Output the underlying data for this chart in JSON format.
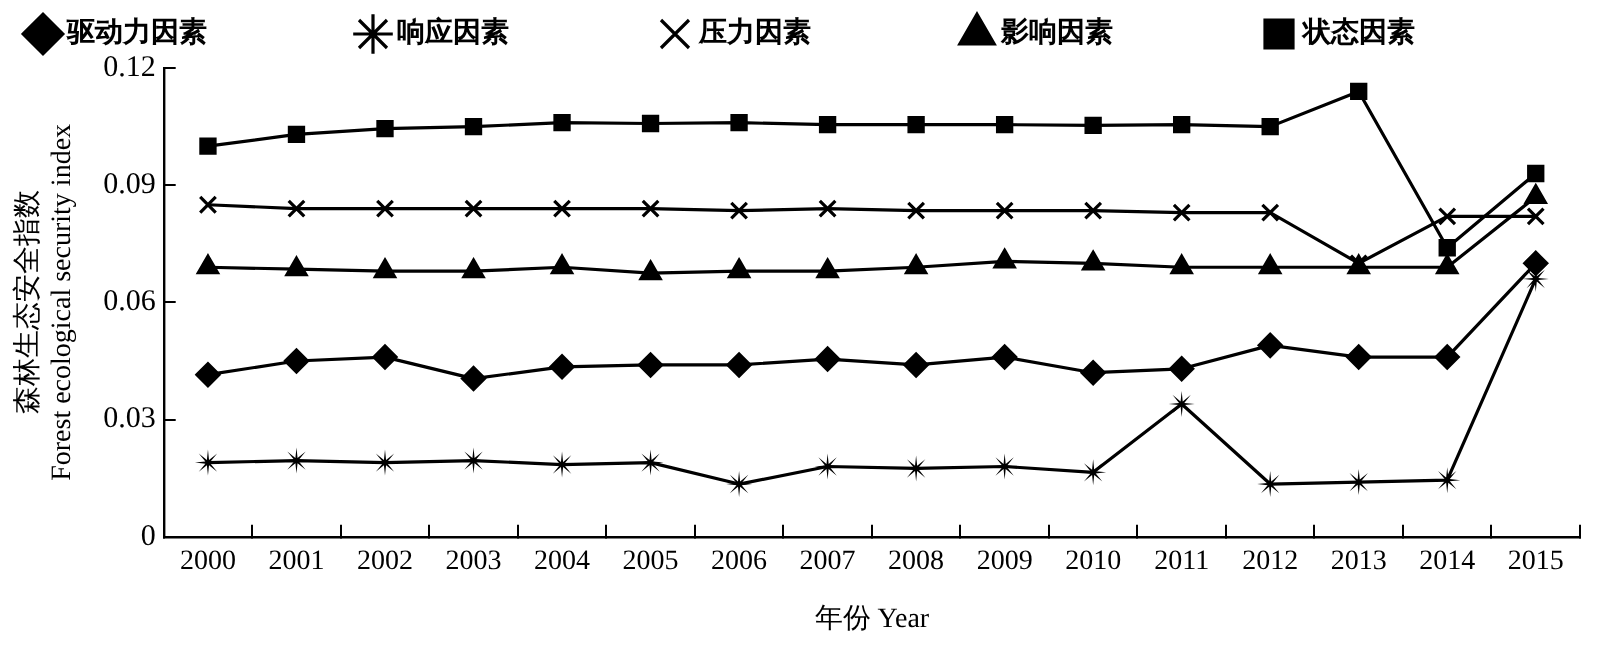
{
  "chart_data": {
    "type": "line",
    "xlabel": "年份 Year",
    "ylabel": "森林生态安全指数\nForest ecological security index",
    "categories": [
      "2000",
      "2001",
      "2002",
      "2003",
      "2004",
      "2005",
      "2006",
      "2007",
      "2008",
      "2009",
      "2010",
      "2011",
      "2012",
      "2013",
      "2014",
      "2015"
    ],
    "ylim": [
      0,
      0.12
    ],
    "yticks": [
      0,
      0.03,
      0.06,
      0.09,
      0.12
    ],
    "grid": false,
    "legend": "top",
    "line_style": "solid",
    "series": [
      {
        "name": "驱动力因素",
        "color": "#000000",
        "marker": "diamond",
        "values": [
          0.0415,
          0.045,
          0.046,
          0.0405,
          0.0435,
          0.044,
          0.044,
          0.0455,
          0.044,
          0.046,
          0.042,
          0.043,
          0.049,
          0.046,
          0.046,
          0.07
        ]
      },
      {
        "name": "响应因素",
        "color": "#000000",
        "marker": "star",
        "values": [
          0.019,
          0.0195,
          0.019,
          0.0195,
          0.0185,
          0.019,
          0.0135,
          0.018,
          0.0175,
          0.018,
          0.0165,
          0.034,
          0.0135,
          0.014,
          0.0145,
          0.066
        ]
      },
      {
        "name": "压力因素",
        "color": "#000000",
        "marker": "cross",
        "values": [
          0.085,
          0.084,
          0.084,
          0.084,
          0.084,
          0.084,
          0.0835,
          0.084,
          0.0835,
          0.0835,
          0.0835,
          0.083,
          0.083,
          0.07,
          0.082,
          0.082
        ]
      },
      {
        "name": "影响因素",
        "color": "#000000",
        "marker": "triangle",
        "values": [
          0.069,
          0.0685,
          0.068,
          0.068,
          0.069,
          0.0675,
          0.068,
          0.068,
          0.069,
          0.0705,
          0.07,
          0.069,
          0.069,
          0.069,
          0.069,
          0.087
        ]
      },
      {
        "name": "状态因素",
        "color": "#000000",
        "marker": "square",
        "values": [
          0.1,
          0.103,
          0.1045,
          0.105,
          0.106,
          0.1058,
          0.106,
          0.1055,
          0.1055,
          0.1055,
          0.1053,
          0.1055,
          0.105,
          0.114,
          0.074,
          0.093
        ]
      }
    ]
  }
}
